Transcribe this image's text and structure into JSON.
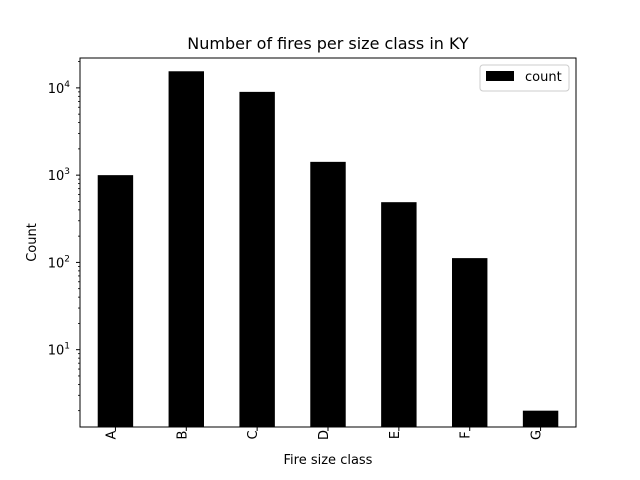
{
  "chart_data": {
    "type": "bar",
    "title": "Number of fires per size class in KY",
    "xlabel": "Fire size class",
    "ylabel": "Count",
    "yscale": "log",
    "ylim": [
      1.3,
      22000
    ],
    "yticks": [
      {
        "value": 10,
        "base": "10",
        "exp": "1"
      },
      {
        "value": 100,
        "base": "10",
        "exp": "2"
      },
      {
        "value": 1000,
        "base": "10",
        "exp": "3"
      },
      {
        "value": 10000,
        "base": "10",
        "exp": "4"
      }
    ],
    "categories": [
      "A",
      "B",
      "C",
      "D",
      "E",
      "F",
      "G"
    ],
    "series": [
      {
        "name": "count",
        "color": "#000000",
        "values": [
          1000,
          15500,
          9000,
          1420,
          490,
          112,
          2
        ]
      }
    ],
    "legend": {
      "position": "top-right"
    },
    "grid": false
  }
}
